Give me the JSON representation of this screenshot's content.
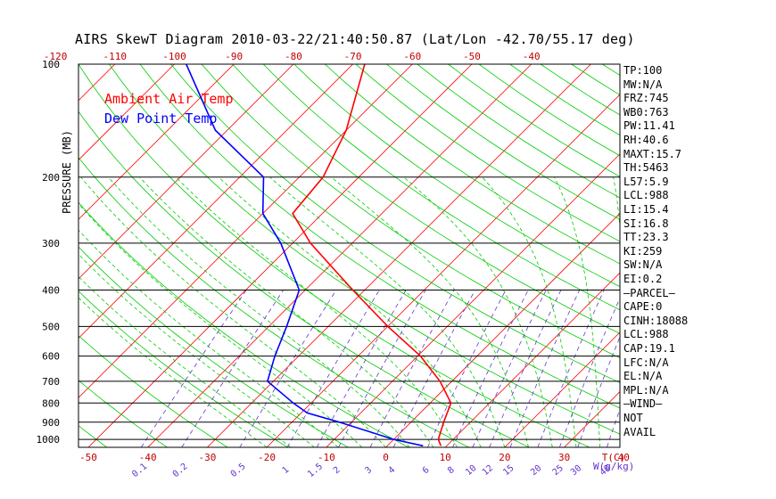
{
  "title": "AIRS SkewT Diagram 2010-03-22/21:40:50.87 (Lat/Lon -42.70/55.17 deg)",
  "legend": [
    {
      "label": "Ambient Air Temp",
      "color": "#ff0000"
    },
    {
      "label": "Dew Point Temp",
      "color": "#0000ff"
    }
  ],
  "colors": {
    "isotherm": "#ff0000",
    "dry_adiabat": "#00cc00",
    "moist_adiabat": "#00cc00",
    "mixing_ratio": "#6633cc",
    "temperature_profile": "#ff0000",
    "dewpoint_profile": "#0000ff",
    "isobar": "#000000"
  },
  "stats": [
    "TP:100",
    "MW:N/A",
    "FRZ:745",
    "WB0:763",
    "PW:11.41",
    "RH:40.6",
    "MAXT:15.7",
    "TH:5463",
    "L57:5.9",
    "LCL:988",
    "LI:15.4",
    "SI:16.8",
    "TT:23.3",
    "KI:259",
    "SW:N/A",
    "EI:0.2",
    "—PARCEL—",
    "CAPE:0",
    "CINH:18088",
    "LCL:988",
    "CAP:19.1",
    "LFC:N/A",
    "EL:N/A",
    "MPL:N/A",
    "—WIND—",
    "NOT",
    "AVAIL"
  ],
  "chart_data": {
    "type": "line",
    "title": "AIRS SkewT Diagram 2010-03-22/21:40:50.87 (Lat/Lon -42.70/55.17 deg)",
    "ylabel": "PRESSURE (MB)",
    "xlabel": "T(C)",
    "mixing_ratio_label": "W(g/kg)",
    "y_scale": "log",
    "ylim": [
      1050,
      100
    ],
    "pressure_ticks": [
      100,
      200,
      300,
      400,
      500,
      600,
      700,
      800,
      900,
      1000
    ],
    "bottom_temp_ticks": [
      -50,
      -40,
      -30,
      -20,
      -10,
      0,
      10,
      20,
      30,
      40
    ],
    "top_temp_ticks": [
      -120,
      -110,
      -100,
      -90,
      -80,
      -70,
      -60,
      -50,
      -40
    ],
    "mixing_ratio_ticks": [
      "0.1",
      "0.2",
      "0.5",
      "1",
      "1.5",
      "2",
      "3",
      "4",
      "6",
      "8",
      "10",
      "12",
      "15",
      "20",
      "25",
      "30",
      "40"
    ],
    "series": [
      {
        "name": "Ambient Air Temp",
        "pressure": [
          1040,
          1000,
          900,
          800,
          700,
          600,
          500,
          400,
          300,
          250,
          200,
          150,
          100
        ],
        "values": [
          9,
          7.5,
          5.5,
          3.5,
          -2,
          -9.5,
          -20,
          -32,
          -47,
          -55,
          -56,
          -60,
          -68
        ]
      },
      {
        "name": "Dew Point Temp",
        "pressure": [
          1040,
          1000,
          900,
          850,
          800,
          700,
          600,
          500,
          400,
          300,
          250,
          200,
          150,
          100
        ],
        "values": [
          6,
          0,
          -12,
          -19,
          -23,
          -31,
          -34,
          -37,
          -41,
          -52,
          -60,
          -66,
          -82,
          -98
        ]
      }
    ]
  }
}
